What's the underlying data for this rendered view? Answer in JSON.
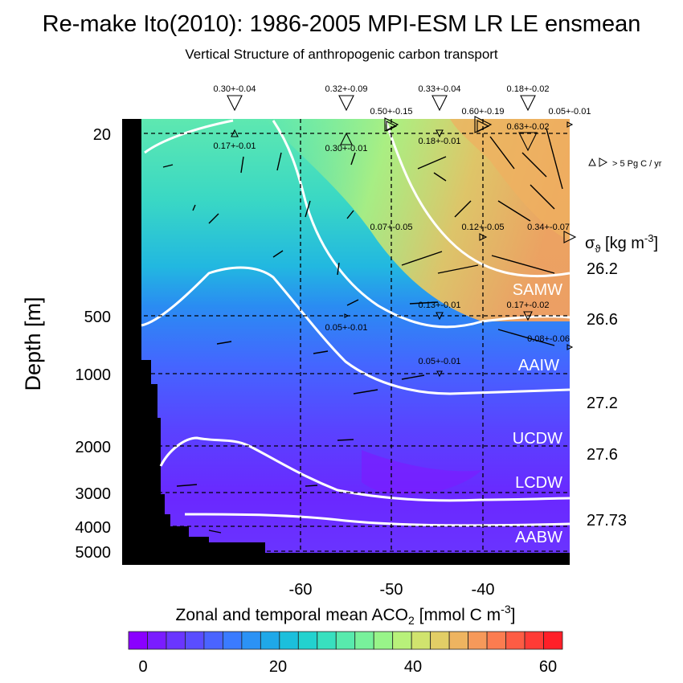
{
  "chart_data": {
    "type": "heatmap",
    "title": "Re-make Ito(2010): 1986-2005 MPI-ESM LR LE ensmean",
    "subtitle": "Vertical Structure of anthropogenic carbon transport",
    "xlabel": "",
    "ylabel": "Depth [m]",
    "colorbar_label": "Zonal and temporal mean ACO",
    "colorbar_label_sub": "2",
    "colorbar_label_unit": " [mmol C m",
    "colorbar_label_sup": "-3",
    "colorbar_label_close": "]",
    "x_ticks": [
      -60,
      -50,
      -40
    ],
    "x_tick_labels": [
      "-60",
      "-50",
      "-40"
    ],
    "xlim": [
      -77,
      -28
    ],
    "y_tick_labels": [
      "20",
      "500",
      "1000",
      "2000",
      "3000",
      "4000",
      "5000"
    ],
    "colorbar_ticks": [
      "0",
      "20",
      "40",
      "60"
    ],
    "colorbar_range": [
      0,
      60
    ],
    "colorbar_colors": [
      "#8a00ff",
      "#7a1cff",
      "#6a36ff",
      "#5a4dff",
      "#4a64ff",
      "#3a7bff",
      "#2b92f5",
      "#1fa8e8",
      "#1bbfdc",
      "#22d2cf",
      "#38e0bf",
      "#58eaad",
      "#78f19b",
      "#98f489",
      "#b8f17a",
      "#d0e36e",
      "#e2ce66",
      "#eeb460",
      "#f6995a",
      "#fb7c50",
      "#fd5c44",
      "#ff3b36",
      "#ff1f28"
    ],
    "sigma_label": "σ",
    "sigma_label_sub": "ϑ",
    "sigma_label_unit": " [kg m",
    "sigma_label_sup": "-3",
    "sigma_label_close": "]",
    "density_labels": [
      "26.2",
      "26.6",
      "27.2",
      "27.6",
      "27.73"
    ],
    "water_masses": [
      "SAMW",
      "AAIW",
      "UCDW",
      "LCDW",
      "AABW"
    ],
    "legend_note": "> 5 Pg C / yr",
    "vertical_transport": [
      "0.30+-0.04",
      "0.32+-0.09",
      "0.33+-0.04",
      "0.18+-0.02",
      "0.17+-0.01",
      "0.30+-0.01",
      "0.18+-0.01",
      "0.63+-0.02",
      "0.13+-0.01",
      "0.17+-0.02",
      "0.05+-0.01"
    ],
    "horizontal_transport": [
      "0.50+-0.15",
      "0.60+-0.19",
      "0.05+-0.01",
      "0.07+-0.05",
      "0.12+-0.05",
      "0.34+-0.07",
      "0.05+-0.01",
      "0.08+-0.06"
    ],
    "colors": {
      "contour": "#ffffff",
      "land": "#000000",
      "grid": "#000000"
    }
  }
}
